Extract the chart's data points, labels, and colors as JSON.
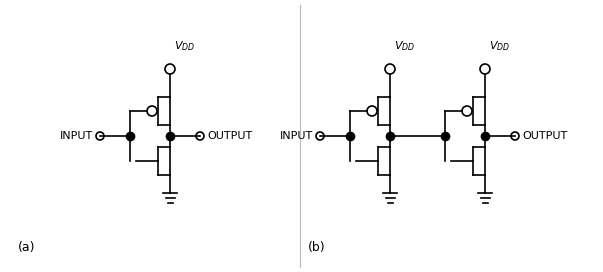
{
  "background_color": "#ffffff",
  "line_color": "#000000",
  "line_width": 1.2,
  "fig_width": 6.03,
  "fig_height": 2.72,
  "dpi": 100,
  "label_a": "(a)",
  "label_b": "(b)",
  "input_label": "INPUT",
  "output_label": "OUTPUT",
  "vdd_label": "$V_{DD}$",
  "font_size": 8,
  "label_font_size": 9,
  "divider_color": "#bbbbbb"
}
